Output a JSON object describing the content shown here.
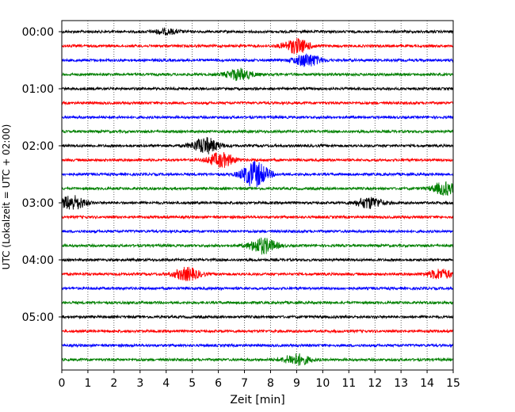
{
  "chart_data": {
    "type": "line",
    "title": "",
    "xlabel": "Zeit  [min]",
    "ylabel": "UTC (Lokalzeit = UTC + 02:00)",
    "xlim": [
      0,
      15
    ],
    "x_ticks": [
      "0",
      "1",
      "2",
      "3",
      "4",
      "5",
      "6",
      "7",
      "8",
      "9",
      "10",
      "11",
      "12",
      "13",
      "14",
      "15"
    ],
    "y_ticks": [
      "00:00",
      "01:00",
      "02:00",
      "03:00",
      "04:00",
      "05:00"
    ],
    "grid": "vertical dotted",
    "trace_colors": [
      "#000000",
      "#ff0000",
      "#0000ff",
      "#008000"
    ],
    "traces_count": 24,
    "trace_minutes_each": 15,
    "events": [
      {
        "trace": 0,
        "t": 4.0,
        "amp": 0.3
      },
      {
        "trace": 1,
        "t": 9.0,
        "amp": 0.9
      },
      {
        "trace": 2,
        "t": 9.4,
        "amp": 0.8
      },
      {
        "trace": 3,
        "t": 6.8,
        "amp": 0.7
      },
      {
        "trace": 8,
        "t": 5.5,
        "amp": 1.0
      },
      {
        "trace": 9,
        "t": 6.1,
        "amp": 0.9
      },
      {
        "trace": 10,
        "t": 7.4,
        "amp": 1.6
      },
      {
        "trace": 11,
        "t": 14.7,
        "amp": 0.8
      },
      {
        "trace": 12,
        "t": 0.4,
        "amp": 0.9
      },
      {
        "trace": 12,
        "t": 11.8,
        "amp": 0.7
      },
      {
        "trace": 15,
        "t": 7.7,
        "amp": 1.0
      },
      {
        "trace": 17,
        "t": 4.8,
        "amp": 0.8
      },
      {
        "trace": 17,
        "t": 14.5,
        "amp": 0.6
      },
      {
        "trace": 23,
        "t": 9.0,
        "amp": 0.7
      }
    ]
  }
}
